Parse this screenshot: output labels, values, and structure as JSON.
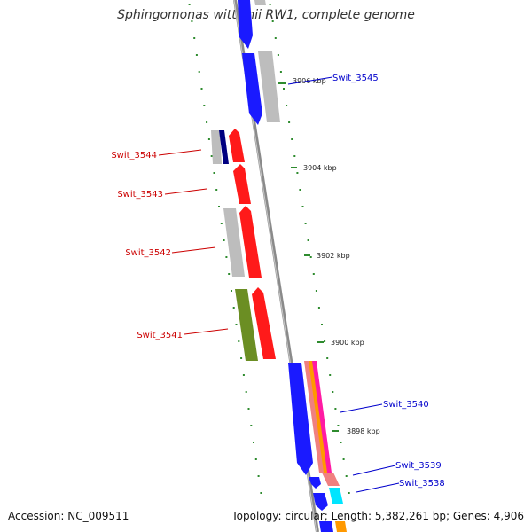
{
  "header": {
    "title": "Sphingomonas wittichii RW1, complete genome"
  },
  "footer": {
    "accession": "Accession: NC_009511",
    "summary": "Topology: circular; Length: 5,382,261 bp; Genes: 4,906"
  },
  "colors": {
    "backbone": "#8a8a8a",
    "forward_cds": "#1a1aff",
    "reverse_cds": "#ff1a1a",
    "grey_feature": "#bdbdbd",
    "olive_feature": "#6b8e23",
    "magenta_feature": "#ff1aa3",
    "salmon_feature": "#f08080",
    "orange_feature": "#ff9900",
    "cyan_feature": "#00e5ff",
    "navy_feature": "#000080",
    "tick_mark": "#2e8b2e",
    "forward_label": "#0000cc",
    "reverse_label": "#cc0000"
  },
  "ticks": [
    {
      "id": "tick-3906",
      "label": "3906 kbp"
    },
    {
      "id": "tick-3904",
      "label": "3904 kbp"
    },
    {
      "id": "tick-3902",
      "label": "3902 kbp"
    },
    {
      "id": "tick-3900",
      "label": "3900 kbp"
    },
    {
      "id": "tick-3898",
      "label": "3898 kbp"
    }
  ],
  "genes": [
    {
      "id": "swit-3545",
      "label": "Swit_3545",
      "strand": "forward"
    },
    {
      "id": "swit-3544",
      "label": "Swit_3544",
      "strand": "reverse"
    },
    {
      "id": "swit-3543",
      "label": "Swit_3543",
      "strand": "reverse"
    },
    {
      "id": "swit-3542",
      "label": "Swit_3542",
      "strand": "reverse"
    },
    {
      "id": "swit-3541",
      "label": "Swit_3541",
      "strand": "reverse"
    },
    {
      "id": "swit-3540",
      "label": "Swit_3540",
      "strand": "forward"
    },
    {
      "id": "swit-3539",
      "label": "Swit_3539",
      "strand": "forward"
    },
    {
      "id": "swit-3538",
      "label": "Swit_3538",
      "strand": "forward"
    }
  ]
}
